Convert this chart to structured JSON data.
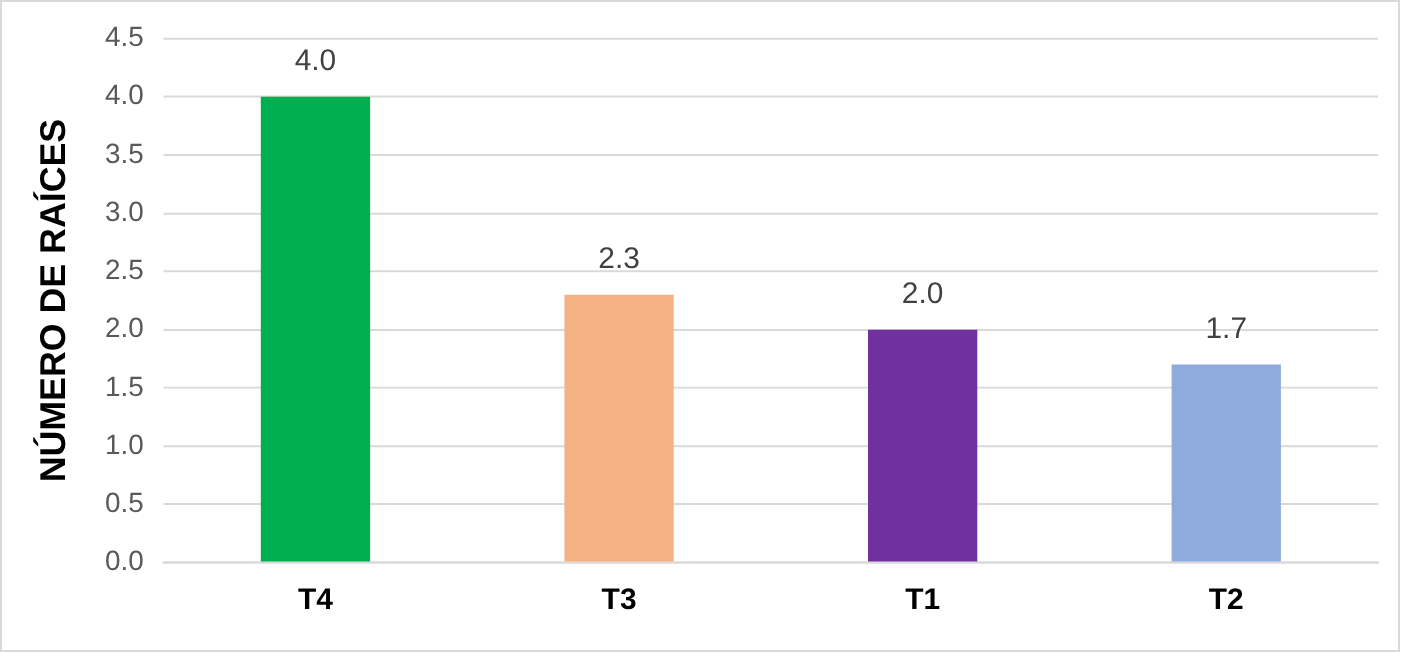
{
  "chart_data": {
    "type": "bar",
    "ylabel": "NÚMERO DE RAÍCES",
    "categories": [
      "T4",
      "T3",
      "T1",
      "T2"
    ],
    "values": [
      4.0,
      2.3,
      2.0,
      1.7
    ],
    "colors": [
      "#00b050",
      "#f4b183",
      "#7030a0",
      "#8faadc"
    ],
    "value_labels": [
      "4.0",
      "2.3",
      "2.0",
      "1.7"
    ],
    "ylim": [
      0,
      4.5
    ],
    "yticks": [
      {
        "value": 0,
        "label": "0.0"
      },
      {
        "value": 0.5,
        "label": "0.5"
      },
      {
        "value": 1,
        "label": "1.0"
      },
      {
        "value": 1.5,
        "label": "1.5"
      },
      {
        "value": 2,
        "label": "2.0"
      },
      {
        "value": 2.5,
        "label": "2.5"
      },
      {
        "value": 3,
        "label": "3.0"
      },
      {
        "value": 3.5,
        "label": "3.5"
      },
      {
        "value": 4,
        "label": "4.0"
      },
      {
        "value": 4.5,
        "label": "4.5"
      }
    ],
    "grid": "y",
    "legend": false
  }
}
